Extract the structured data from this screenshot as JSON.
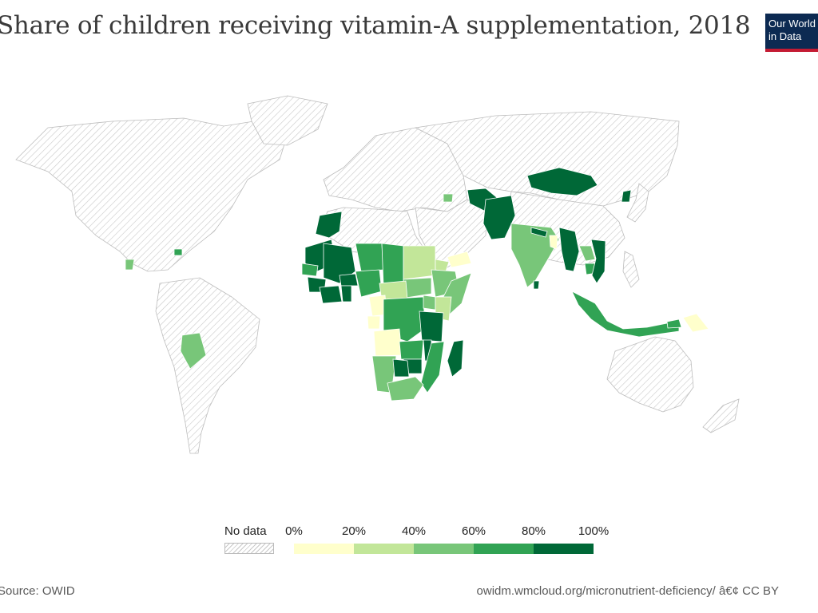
{
  "title": "Share of children receiving vitamin-A supplementation, 2018",
  "logo": {
    "line1": "Our World",
    "line2": "in Data"
  },
  "legend": {
    "no_data_label": "No data",
    "ticks": [
      "0%",
      "20%",
      "40%",
      "60%",
      "80%",
      "100%"
    ],
    "bins": [
      "#ffffcc",
      "#c2e699",
      "#78c679",
      "#31a354",
      "#006837"
    ]
  },
  "footer": {
    "source": "Source: OWID",
    "license": "owidm.wmcloud.org/micronutrient-deficiency/ â€¢ CC BY"
  },
  "colors": {
    "no_data_fill": "#ffffff",
    "hatch": "#c8c8c8",
    "border": "#bdbdbd"
  },
  "map_data": {
    "indicator": "Share of children receiving vitamin-A supplementation",
    "year": 2018,
    "regions": [
      {
        "name": "Mongolia",
        "bin": 4
      },
      {
        "name": "Pakistan",
        "bin": 4
      },
      {
        "name": "Afghanistan",
        "bin": 4
      },
      {
        "name": "India",
        "bin": 2
      },
      {
        "name": "Nepal",
        "bin": 4
      },
      {
        "name": "Bangladesh",
        "bin": 0
      },
      {
        "name": "Myanmar",
        "bin": 4
      },
      {
        "name": "Laos",
        "bin": 2
      },
      {
        "name": "Cambodia",
        "bin": 3
      },
      {
        "name": "Vietnam",
        "bin": 4
      },
      {
        "name": "North Korea",
        "bin": 4
      },
      {
        "name": "Sri Lanka",
        "bin": 4
      },
      {
        "name": "Indonesia",
        "bin": 3
      },
      {
        "name": "Philippines",
        "bin": null
      },
      {
        "name": "Timor-Leste",
        "bin": 3
      },
      {
        "name": "Papua New Guinea",
        "bin": 0
      },
      {
        "name": "Morocco",
        "bin": 4
      },
      {
        "name": "Mauritania",
        "bin": 4
      },
      {
        "name": "Mali",
        "bin": 4
      },
      {
        "name": "Senegal",
        "bin": 3
      },
      {
        "name": "Guinea",
        "bin": 4
      },
      {
        "name": "Cote d'Ivoire",
        "bin": 4
      },
      {
        "name": "Burkina Faso",
        "bin": 4
      },
      {
        "name": "Ghana",
        "bin": 4
      },
      {
        "name": "Niger",
        "bin": 3
      },
      {
        "name": "Nigeria",
        "bin": 3
      },
      {
        "name": "Chad",
        "bin": 3
      },
      {
        "name": "Sudan",
        "bin": 1
      },
      {
        "name": "South Sudan",
        "bin": 2
      },
      {
        "name": "Central African Republic",
        "bin": 1
      },
      {
        "name": "Ethiopia",
        "bin": 2
      },
      {
        "name": "Eritrea",
        "bin": 1
      },
      {
        "name": "Somalia",
        "bin": 2
      },
      {
        "name": "Yemen",
        "bin": 0
      },
      {
        "name": "Cameroon",
        "bin": 0
      },
      {
        "name": "Gabon",
        "bin": 0
      },
      {
        "name": "DR Congo",
        "bin": 3
      },
      {
        "name": "Uganda",
        "bin": 2
      },
      {
        "name": "Kenya",
        "bin": 1
      },
      {
        "name": "Tanzania",
        "bin": 4
      },
      {
        "name": "Angola",
        "bin": 0
      },
      {
        "name": "Zambia",
        "bin": 3
      },
      {
        "name": "Malawi",
        "bin": 4
      },
      {
        "name": "Mozambique",
        "bin": 3
      },
      {
        "name": "Zimbabwe",
        "bin": 4
      },
      {
        "name": "Namibia",
        "bin": 2
      },
      {
        "name": "Botswana",
        "bin": 4
      },
      {
        "name": "South Africa",
        "bin": 2
      },
      {
        "name": "Madagascar",
        "bin": 4
      },
      {
        "name": "Bolivia",
        "bin": 2
      },
      {
        "name": "Guatemala",
        "bin": 2
      },
      {
        "name": "Haiti",
        "bin": 3
      },
      {
        "name": "Armenia",
        "bin": 2
      }
    ]
  }
}
